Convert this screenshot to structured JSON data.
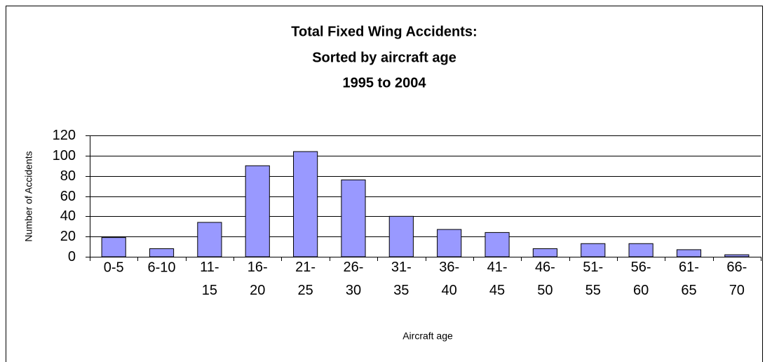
{
  "chart_data": {
    "type": "bar",
    "title": [
      "Total Fixed Wing Accidents:",
      "Sorted by aircraft age",
      "1995 to 2004"
    ],
    "x_label": "Aircraft age",
    "y_label": "Number of Accidents",
    "categories": [
      "0-5",
      "6-10",
      "11-15",
      "16-20",
      "21-25",
      "26-30",
      "31-35",
      "36-40",
      "41-45",
      "46-50",
      "51-55",
      "56-60",
      "61-65",
      "66-70"
    ],
    "values": [
      19,
      8,
      34,
      90,
      104,
      76,
      40,
      27,
      24,
      8,
      13,
      13,
      7,
      2
    ],
    "color": "#9999ff",
    "ylim": [
      0,
      120
    ],
    "yticks": [
      0,
      20,
      40,
      60,
      80,
      100,
      120
    ],
    "grid": true
  }
}
